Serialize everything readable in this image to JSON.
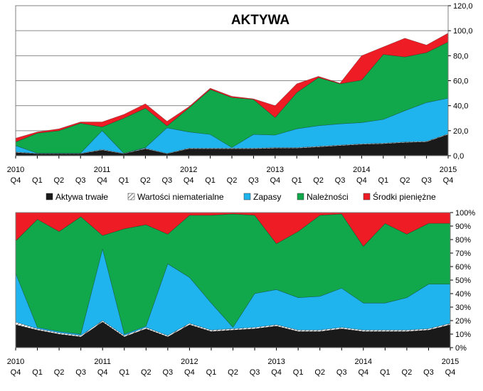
{
  "colors": {
    "aktywa_trwale": "#1a1a1a",
    "wartosci_niematerialne": "#6e6e6e",
    "zapasy": "#1fb4ee",
    "naleznosci": "#10a84a",
    "srodki_pieniezne": "#ee1c25"
  },
  "x_labels": [
    {
      "year": "2010",
      "q": "Q4"
    },
    {
      "year": "",
      "q": "Q1"
    },
    {
      "year": "",
      "q": "Q2"
    },
    {
      "year": "",
      "q": "Q3"
    },
    {
      "year": "2011",
      "q": "Q4"
    },
    {
      "year": "",
      "q": "Q1"
    },
    {
      "year": "",
      "q": "Q2"
    },
    {
      "year": "",
      "q": "Q3"
    },
    {
      "year": "2012",
      "q": "Q4"
    },
    {
      "year": "",
      "q": "Q1"
    },
    {
      "year": "",
      "q": "Q2"
    },
    {
      "year": "",
      "q": "Q3"
    },
    {
      "year": "2013",
      "q": "Q4"
    },
    {
      "year": "",
      "q": "Q1"
    },
    {
      "year": "",
      "q": "Q2"
    },
    {
      "year": "",
      "q": "Q3"
    },
    {
      "year": "2014",
      "q": "Q4"
    },
    {
      "year": "",
      "q": "Q1"
    },
    {
      "year": "",
      "q": "Q2"
    },
    {
      "year": "",
      "q": "Q3"
    },
    {
      "year": "2015",
      "q": "Q4"
    }
  ],
  "legend": [
    {
      "key": "aktywa_trwale",
      "label": "Aktywa trwałe"
    },
    {
      "key": "wartosci_niematerialne",
      "label": "Wartości niematerialne"
    },
    {
      "key": "zapasy",
      "label": "Zapasy"
    },
    {
      "key": "naleznosci",
      "label": "Należności"
    },
    {
      "key": "srodki_pieniezne",
      "label": "Środki pieniężne"
    }
  ],
  "chart_data": [
    {
      "type": "area",
      "stacked": true,
      "title": "AKTYWA",
      "ylim": [
        0,
        120
      ],
      "yticks": [
        "0,0",
        "20,0",
        "40,0",
        "60,0",
        "80,0",
        "100,0",
        "120,0"
      ],
      "grid": true,
      "series": [
        {
          "key": "aktywa_trwale",
          "name": "Aktywa trwałe",
          "values": [
            2.5,
            1.5,
            1.5,
            1.5,
            4.5,
            1.5,
            5.5,
            1.5,
            5.5,
            5.5,
            5.5,
            5.5,
            6,
            6,
            7,
            8,
            9,
            9.5,
            10.5,
            11,
            17
          ]
        },
        {
          "key": "wartosci_niematerialne",
          "name": "Wartości niematerialne",
          "values": [
            0.5,
            0.3,
            0.3,
            0.3,
            0.5,
            0.3,
            0.5,
            0.3,
            0.5,
            0.5,
            0.5,
            0.5,
            0.5,
            0.5,
            0.5,
            0.5,
            0.5,
            0.5,
            0.5,
            0.5,
            0.5
          ]
        },
        {
          "key": "zapasy",
          "name": "Zapasy",
          "values": [
            5,
            0.2,
            0.2,
            0.2,
            15,
            0.2,
            0.5,
            20.5,
            13,
            11,
            0.5,
            11,
            10,
            15,
            16.5,
            17,
            17,
            19,
            25,
            31,
            28.5
          ]
        },
        {
          "key": "naleznosci",
          "name": "Należności",
          "values": [
            3,
            16,
            18,
            24,
            3,
            28,
            31.5,
            1.5,
            19,
            36,
            40,
            28,
            14,
            29,
            38.5,
            32,
            34,
            52,
            43,
            40,
            45
          ]
        },
        {
          "key": "srodki_pieniezne",
          "name": "Środki pieniężne",
          "values": [
            3,
            1,
            1.5,
            1,
            4,
            3,
            3.5,
            3.7,
            1,
            1,
            1,
            0.5,
            9.5,
            7,
            1,
            0.5,
            19.5,
            6,
            15,
            6,
            7
          ]
        }
      ]
    },
    {
      "type": "area",
      "stacked": true,
      "percent": true,
      "ylim": [
        0,
        100
      ],
      "yticks": [
        "0%",
        "10%",
        "20%",
        "30%",
        "40%",
        "50%",
        "60%",
        "70%",
        "80%",
        "90%",
        "100%"
      ],
      "grid": true,
      "series": [
        {
          "key": "aktywa_trwale",
          "name": "Aktywa trwałe",
          "values": [
            17,
            13,
            10,
            8,
            19,
            8,
            14,
            8,
            17,
            12,
            13,
            14,
            16,
            12,
            12,
            14,
            12,
            12,
            12,
            13,
            17
          ]
        },
        {
          "key": "wartosci_niematerialne",
          "name": "Wartości niematerialne",
          "values": [
            2,
            1,
            1,
            1,
            1,
            1,
            1,
            1,
            1,
            1,
            1,
            1,
            1,
            1,
            1,
            1,
            1,
            1,
            1,
            1,
            1
          ]
        },
        {
          "key": "zapasy",
          "name": "Zapasy",
          "values": [
            36,
            1,
            1,
            1,
            53,
            1,
            1,
            53,
            34,
            20,
            1,
            25,
            26,
            24,
            25,
            29,
            20,
            20,
            24,
            33,
            29
          ]
        },
        {
          "key": "naleznosci",
          "name": "Należności",
          "values": [
            24,
            80,
            74,
            87,
            10,
            78,
            75,
            22,
            46,
            65,
            84,
            58,
            34,
            49,
            60,
            55,
            42,
            59,
            47,
            45,
            45
          ]
        },
        {
          "key": "srodki_pieniezne",
          "name": "Środki pieniężne",
          "values": [
            21,
            5,
            14,
            3,
            17,
            12,
            9,
            16,
            2,
            2,
            1,
            2,
            23,
            14,
            2,
            1,
            25,
            8,
            16,
            8,
            8
          ]
        }
      ]
    }
  ]
}
